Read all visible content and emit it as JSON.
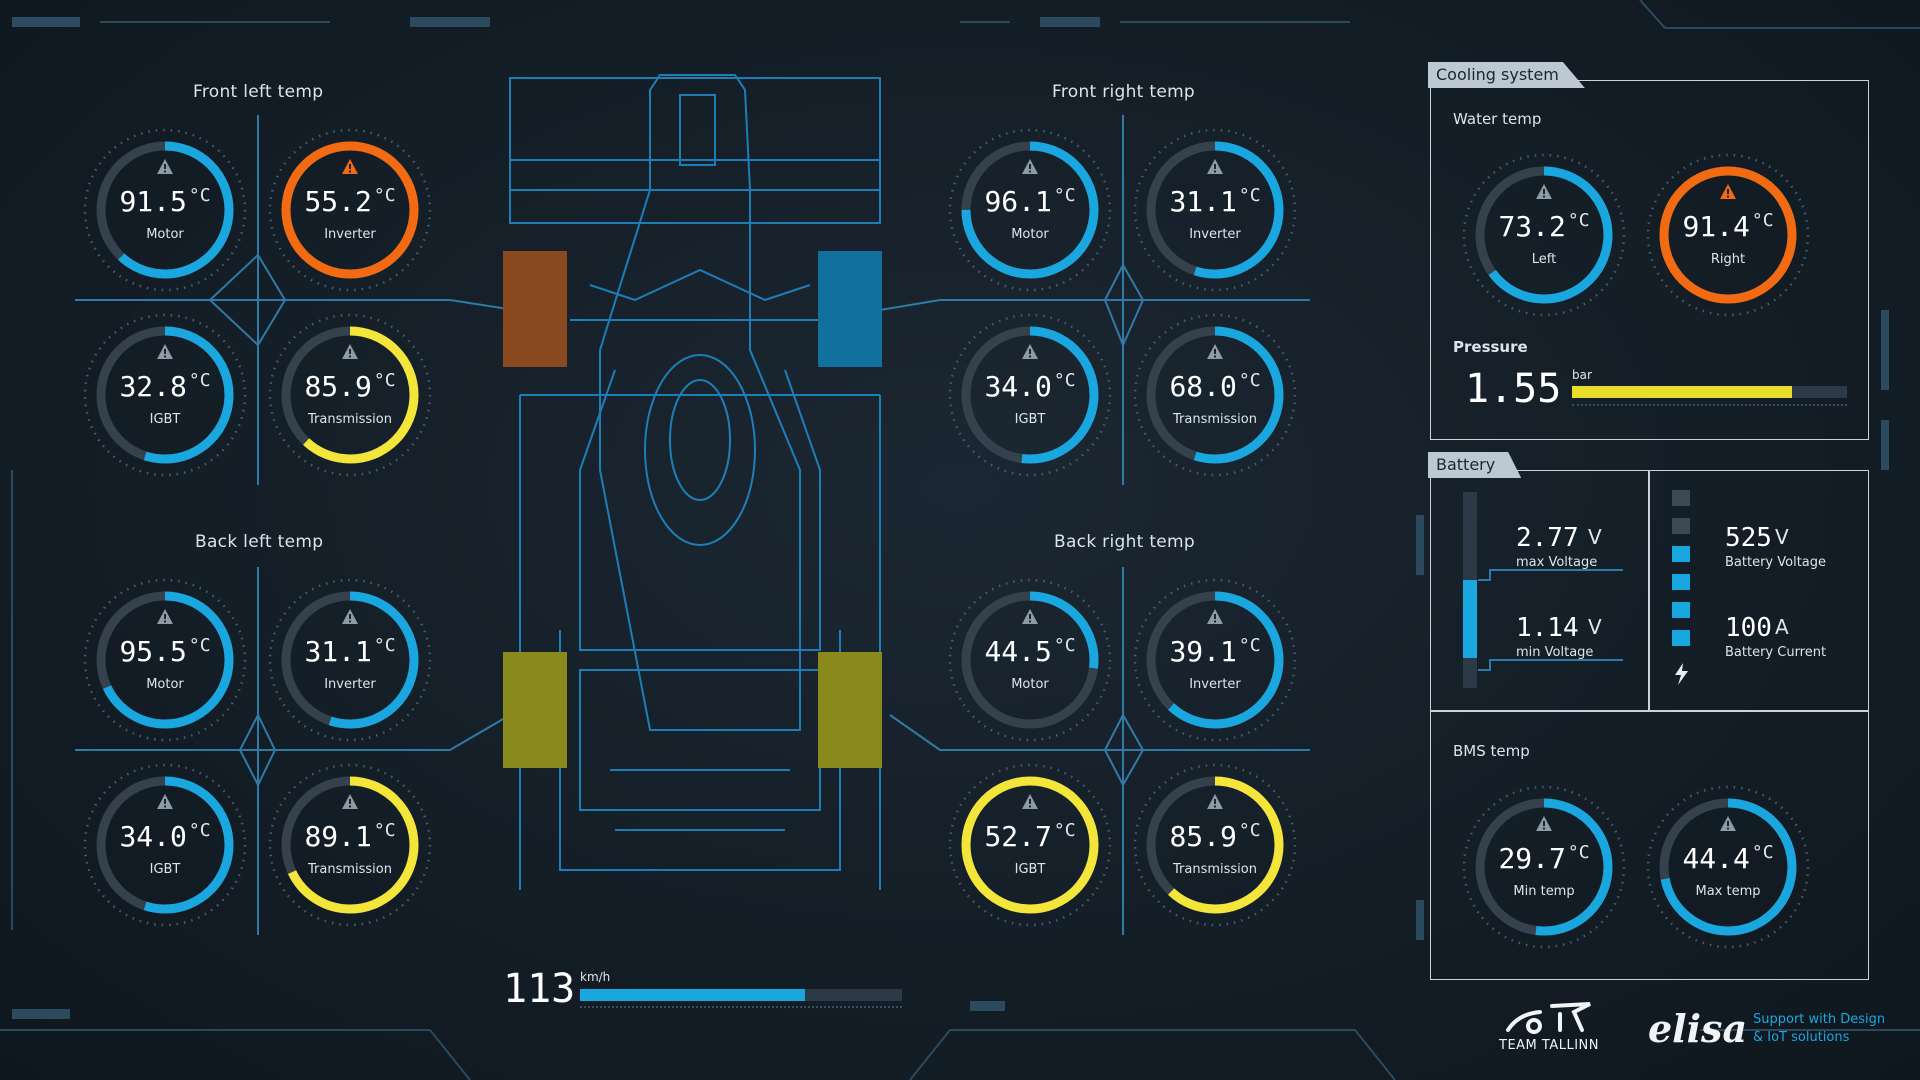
{
  "sections": {
    "front_left": "Front left temp",
    "front_right": "Front right temp",
    "back_left": "Back left temp",
    "back_right": "Back right temp"
  },
  "gauges": {
    "fl_motor": {
      "value": "91.5",
      "unit": "°C",
      "label": "Motor",
      "level": 0.62,
      "color": "#1aa7e0"
    },
    "fl_inverter": {
      "value": "55.2",
      "unit": "°C",
      "label": "Inverter",
      "level": 1.0,
      "color": "#f26a12"
    },
    "fl_igbt": {
      "value": "32.8",
      "unit": "°C",
      "label": "IGBT",
      "level": 0.55,
      "color": "#1aa7e0"
    },
    "fl_trans": {
      "value": "85.9",
      "unit": "°C",
      "label": "Transmission",
      "level": 0.62,
      "color": "#f3e53a"
    },
    "fr_motor": {
      "value": "96.1",
      "unit": "°C",
      "label": "Motor",
      "level": 0.75,
      "color": "#1aa7e0"
    },
    "fr_inverter": {
      "value": "31.1",
      "unit": "°C",
      "label": "Inverter",
      "level": 0.55,
      "color": "#1aa7e0"
    },
    "fr_igbt": {
      "value": "34.0",
      "unit": "°C",
      "label": "IGBT",
      "level": 0.52,
      "color": "#1aa7e0"
    },
    "fr_trans": {
      "value": "68.0",
      "unit": "°C",
      "label": "Transmission",
      "level": 0.55,
      "color": "#1aa7e0"
    },
    "bl_motor": {
      "value": "95.5",
      "unit": "°C",
      "label": "Motor",
      "level": 0.68,
      "color": "#1aa7e0"
    },
    "bl_inverter": {
      "value": "31.1",
      "unit": "°C",
      "label": "Inverter",
      "level": 0.55,
      "color": "#1aa7e0"
    },
    "bl_igbt": {
      "value": "34.0",
      "unit": "°C",
      "label": "IGBT",
      "level": 0.55,
      "color": "#1aa7e0"
    },
    "bl_trans": {
      "value": "89.1",
      "unit": "°C",
      "label": "Transmission",
      "level": 0.68,
      "color": "#f3e53a"
    },
    "br_motor": {
      "value": "44.5",
      "unit": "°C",
      "label": "Motor",
      "level": 0.27,
      "color": "#1aa7e0"
    },
    "br_inverter": {
      "value": "39.1",
      "unit": "°C",
      "label": "Inverter",
      "level": 0.62,
      "color": "#1aa7e0"
    },
    "br_igbt": {
      "value": "52.7",
      "unit": "°C",
      "label": "IGBT",
      "level": 1.0,
      "color": "#f3e53a"
    },
    "br_trans": {
      "value": "85.9",
      "unit": "°C",
      "label": "Transmission",
      "level": 0.62,
      "color": "#f3e53a"
    },
    "water_left": {
      "value": "73.2",
      "unit": "°C",
      "label": "Left",
      "level": 0.65,
      "color": "#1aa7e0"
    },
    "water_right": {
      "value": "91.4",
      "unit": "°C",
      "label": "Right",
      "level": 1.0,
      "color": "#f26a12"
    },
    "bms_min": {
      "value": "29.7",
      "unit": "°C",
      "label": "Min temp",
      "level": 0.52,
      "color": "#1aa7e0"
    },
    "bms_max": {
      "value": "44.4",
      "unit": "°C",
      "label": "Max temp",
      "level": 0.72,
      "color": "#1aa7e0"
    }
  },
  "wheels": {
    "fl": "#8a4a1f",
    "fr": "#12719c",
    "bl": "#8a8a1c",
    "br": "#8a8a1c"
  },
  "speed": {
    "value": "113",
    "unit": "km/h",
    "level": 0.7
  },
  "cooling": {
    "tab": "Cooling system",
    "water_temp": "Water temp",
    "pressure_label": "Pressure",
    "pressure_value": "1.55",
    "pressure_unit": "bar",
    "pressure_level": 0.8
  },
  "battery": {
    "tab": "Battery",
    "max_voltage": "2.77",
    "max_voltage_unit": "V",
    "max_voltage_label": "max Voltage",
    "min_voltage": "1.14",
    "min_voltage_unit": "V",
    "min_voltage_label": "min Voltage",
    "battery_voltage": "525",
    "battery_voltage_unit": "V",
    "battery_voltage_label": "Battery Voltage",
    "battery_current": "100",
    "battery_current_unit": "A",
    "battery_current_label": "Battery Current",
    "cell_bar_level": 0.4,
    "segments_active": 4,
    "segments_total": 6
  },
  "bms": {
    "title": "BMS temp"
  },
  "footer": {
    "team_name": "TEAM TALLINN",
    "sponsor": "elisa",
    "sponsor_tagline_1": "Support with Design",
    "sponsor_tagline_2": "& IoT solutions"
  }
}
